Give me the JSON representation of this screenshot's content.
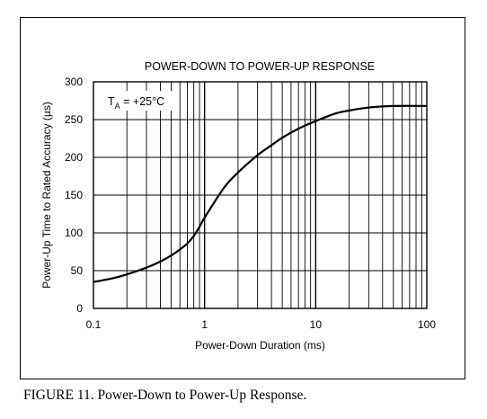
{
  "caption": "FIGURE 11. Power-Down to Power-Up Response.",
  "chart_data": {
    "type": "line",
    "title": "POWER-DOWN TO POWER-UP RESPONSE",
    "xlabel": "Power-Down Duration (ms)",
    "ylabel": "Power-Up Time to Rated Accuracy (µs)",
    "xscale": "log",
    "xlim": [
      0.1,
      100
    ],
    "ylim": [
      0,
      300
    ],
    "xticks": [
      0.1,
      1,
      10,
      100
    ],
    "xtick_labels": [
      "0.1",
      "1",
      "10",
      "100"
    ],
    "yticks": [
      0,
      50,
      100,
      150,
      200,
      250,
      300
    ],
    "ytick_labels": [
      "0",
      "50",
      "100",
      "150",
      "200",
      "250",
      "300"
    ],
    "grid": true,
    "annotation": {
      "main": "T",
      "sub": "A",
      "rest": " = +25°C"
    },
    "series": [
      {
        "x": [
          0.1,
          0.15,
          0.2,
          0.3,
          0.4,
          0.5,
          0.6,
          0.7,
          0.8,
          0.9,
          1,
          1.5,
          2,
          3,
          4,
          5,
          7,
          10,
          15,
          20,
          30,
          50,
          100
        ],
        "y": [
          35,
          40,
          45,
          54,
          62,
          70,
          78,
          86,
          96,
          108,
          120,
          160,
          180,
          203,
          216,
          226,
          238,
          248,
          258,
          262,
          266,
          268,
          268
        ]
      }
    ]
  }
}
